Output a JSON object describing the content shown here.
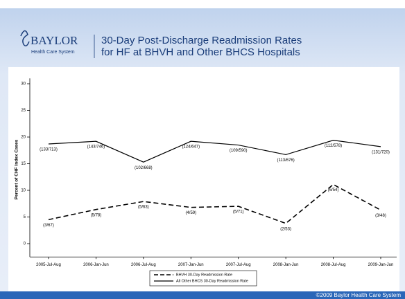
{
  "header": {
    "logo": "BAYLOR",
    "logo_sub": "Health Care System",
    "title_lines": [
      "30-Day Post-Discharge Readmission Rates",
      "for HF at BHVH and Other BHCS Hospitals"
    ]
  },
  "footer": "©2009 Baylor Health Care System",
  "chart_data": {
    "type": "line",
    "y_label": "Percent of CHF Index Cases",
    "categories": [
      "2005-Jul-Aug",
      "2006-Jan-Jun",
      "2006-Jul-Aug",
      "2007-Jan-Jun",
      "2007-Jul-Aug",
      "2008-Jan-Jun",
      "2008-Jul-Aug",
      "2009-Jan-Jun"
    ],
    "series": [
      {
        "name": "BHVH 30-Day Readmission Rate",
        "color": "#000000",
        "dash": true,
        "values": [
          4.5,
          6.4,
          7.9,
          6.8,
          7.0,
          3.8,
          11.1,
          6.3
        ],
        "point_labels": [
          "(3/67)",
          "(5/78)",
          "(5/63)",
          "(4/59)",
          "(5/71)",
          "(2/53)",
          "(6/54)",
          "(3/48)"
        ]
      },
      {
        "name": "All Other BHCS 30-Day Readmission Rate",
        "color": "#000000",
        "dash": false,
        "values": [
          18.7,
          19.2,
          15.3,
          19.2,
          18.5,
          16.7,
          19.4,
          18.2
        ],
        "point_labels": [
          "(133/713)",
          "(143/746)",
          "(102/668)",
          "(124/647)",
          "(109/590)",
          "(113/676)",
          "(112/578)",
          "(131/720)"
        ]
      }
    ],
    "ylim": [
      -2.5,
      31
    ],
    "yticks": [
      0,
      5,
      10,
      15,
      20,
      25,
      30
    ],
    "legend": "bottom"
  }
}
